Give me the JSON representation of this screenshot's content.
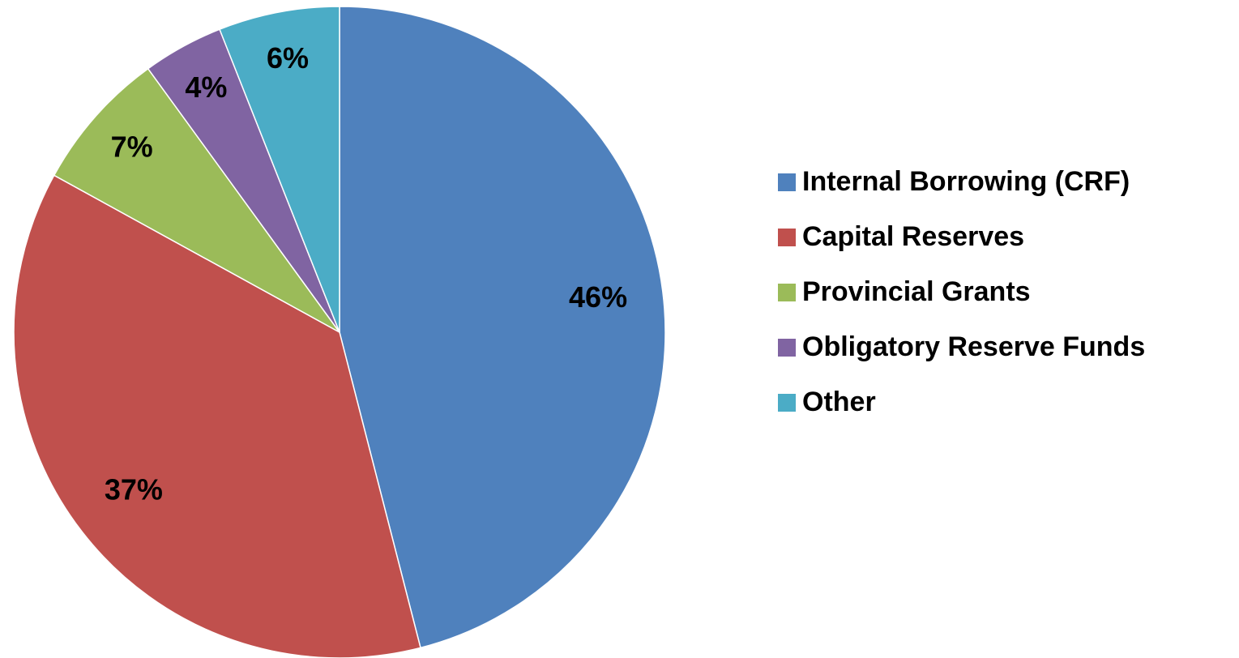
{
  "chart_data": {
    "type": "pie",
    "categories": [
      "Internal Borrowing (CRF)",
      "Capital Reserves",
      "Provincial Grants",
      "Obligatory Reserve Funds",
      "Other"
    ],
    "values": [
      46,
      37,
      7,
      4,
      6
    ],
    "value_labels": [
      "46%",
      "37%",
      "7%",
      "4%",
      "6%"
    ],
    "colors": [
      "#4f81bd",
      "#c0504d",
      "#9bbb59",
      "#8064a2",
      "#4bacc6"
    ],
    "legend": "right"
  }
}
